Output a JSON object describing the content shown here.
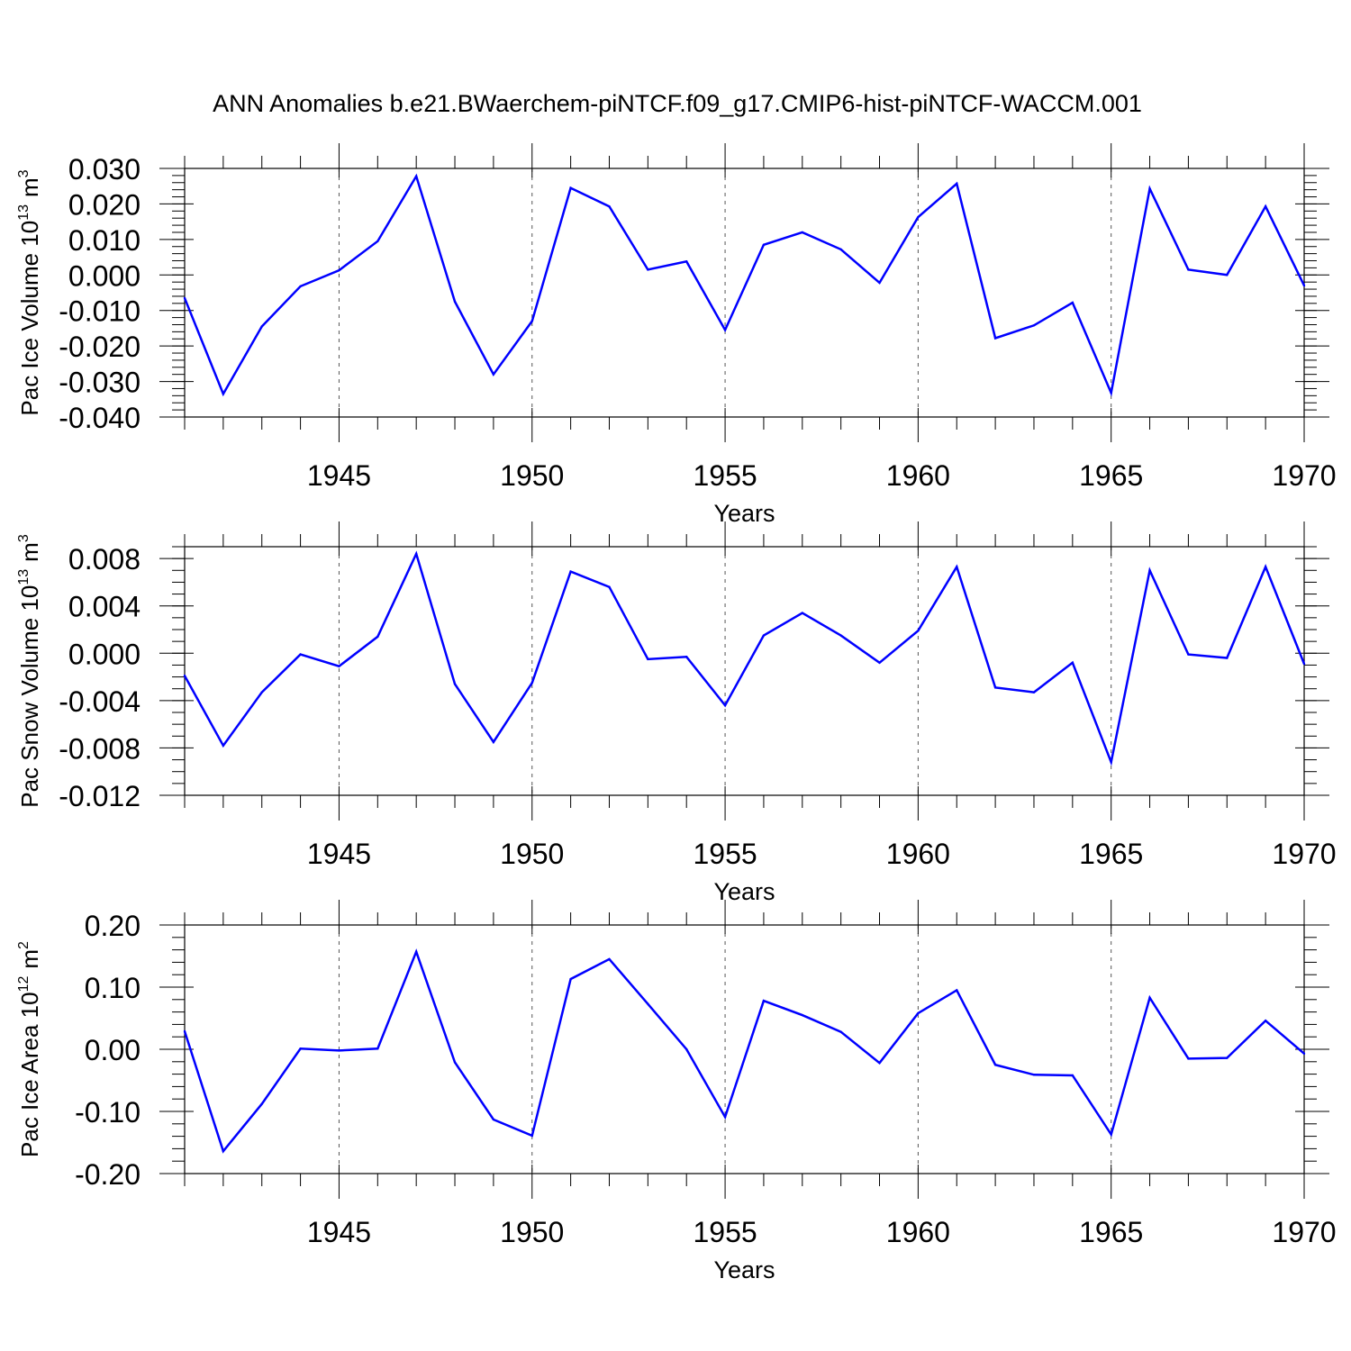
{
  "title": "ANN Anomalies b.e21.BWaerchem-piNTCF.f09_g17.CMIP6-hist-piNTCF-WACCM.001",
  "line_color": "#0000ff",
  "chart_data": [
    {
      "type": "line",
      "ylabel_main": "Pac Ice Volume 10",
      "ylabel_sup": "13",
      "ylabel_unit": "m",
      "ylabel_unit_sup": "3",
      "xlabel": "Years",
      "xlim": [
        1941,
        1970
      ],
      "ylim": [
        -0.04,
        0.03
      ],
      "yticks": [
        -0.04,
        -0.03,
        -0.02,
        -0.01,
        0.0,
        0.01,
        0.02,
        0.03
      ],
      "ytick_labels": [
        "-0.040",
        "-0.030",
        "-0.020",
        "-0.010",
        "0.000",
        "0.010",
        "0.020",
        "0.030"
      ],
      "yminor_step": 0.002,
      "xtick_labels": [
        "1945",
        "1950",
        "1955",
        "1960",
        "1965",
        "1970"
      ],
      "x": [
        1941,
        1942,
        1943,
        1944,
        1945,
        1946,
        1947,
        1948,
        1949,
        1950,
        1951,
        1952,
        1953,
        1954,
        1955,
        1956,
        1957,
        1958,
        1959,
        1960,
        1961,
        1962,
        1963,
        1964,
        1965,
        1966,
        1967,
        1968,
        1969,
        1970
      ],
      "values": [
        -0.0065,
        -0.0335,
        -0.0145,
        -0.0032,
        0.0013,
        0.0095,
        0.0278,
        -0.0075,
        -0.028,
        -0.013,
        0.0245,
        0.0193,
        0.0015,
        0.0038,
        -0.0155,
        0.0085,
        0.012,
        0.0072,
        -0.0022,
        0.0163,
        0.0257,
        -0.0178,
        -0.0142,
        -0.0078,
        -0.0332,
        0.0243,
        0.0015,
        0.0,
        0.0193,
        -0.003
      ]
    },
    {
      "type": "line",
      "ylabel_main": "Pac Snow Volume 10",
      "ylabel_sup": "13",
      "ylabel_unit": "m",
      "ylabel_unit_sup": "3",
      "xlabel": "Years",
      "xlim": [
        1941,
        1970
      ],
      "ylim": [
        -0.012,
        0.009
      ],
      "yticks": [
        -0.012,
        -0.008,
        -0.004,
        0.0,
        0.004,
        0.008
      ],
      "ytick_labels": [
        "-0.012",
        "-0.008",
        "-0.004",
        "0.000",
        "0.004",
        "0.008"
      ],
      "yminor_step": 0.001,
      "xtick_labels": [
        "1945",
        "1950",
        "1955",
        "1960",
        "1965",
        "1970"
      ],
      "x": [
        1941,
        1942,
        1943,
        1944,
        1945,
        1946,
        1947,
        1948,
        1949,
        1950,
        1951,
        1952,
        1953,
        1954,
        1955,
        1956,
        1957,
        1958,
        1959,
        1960,
        1961,
        1962,
        1963,
        1964,
        1965,
        1966,
        1967,
        1968,
        1969,
        1970
      ],
      "values": [
        -0.0019,
        -0.0078,
        -0.0033,
        -0.0001,
        -0.0011,
        0.0014,
        0.0084,
        -0.0026,
        -0.0075,
        -0.0025,
        0.0069,
        0.0056,
        -0.0005,
        -0.0003,
        -0.0044,
        0.0015,
        0.0034,
        0.0015,
        -0.0008,
        0.0019,
        0.0073,
        -0.0029,
        -0.0033,
        -0.0008,
        -0.0092,
        0.007,
        -0.0001,
        -0.0004,
        0.0073,
        -0.0009
      ]
    },
    {
      "type": "line",
      "ylabel_main": "Pac Ice Area 10",
      "ylabel_sup": "12",
      "ylabel_unit": "m",
      "ylabel_unit_sup": "2",
      "xlabel": "Years",
      "xlim": [
        1941,
        1970
      ],
      "ylim": [
        -0.2,
        0.2
      ],
      "yticks": [
        -0.2,
        -0.1,
        0.0,
        0.1,
        0.2
      ],
      "ytick_labels": [
        "-0.20",
        "-0.10",
        "0.00",
        "0.10",
        "0.20"
      ],
      "yminor_step": 0.02,
      "xtick_labels": [
        "1945",
        "1950",
        "1955",
        "1960",
        "1965",
        "1970"
      ],
      "x": [
        1941,
        1942,
        1943,
        1944,
        1945,
        1946,
        1947,
        1948,
        1949,
        1950,
        1951,
        1952,
        1953,
        1954,
        1955,
        1956,
        1957,
        1958,
        1959,
        1960,
        1961,
        1962,
        1963,
        1964,
        1965,
        1966,
        1967,
        1968,
        1969,
        1970
      ],
      "values": [
        0.029,
        -0.164,
        -0.088,
        0.001,
        -0.002,
        0.001,
        0.157,
        -0.021,
        -0.113,
        -0.139,
        0.113,
        0.145,
        0.073,
        0.0,
        -0.109,
        0.078,
        0.055,
        0.028,
        -0.022,
        0.058,
        0.095,
        -0.025,
        -0.041,
        -0.042,
        -0.137,
        0.083,
        -0.015,
        -0.014,
        0.046,
        -0.007
      ]
    }
  ]
}
